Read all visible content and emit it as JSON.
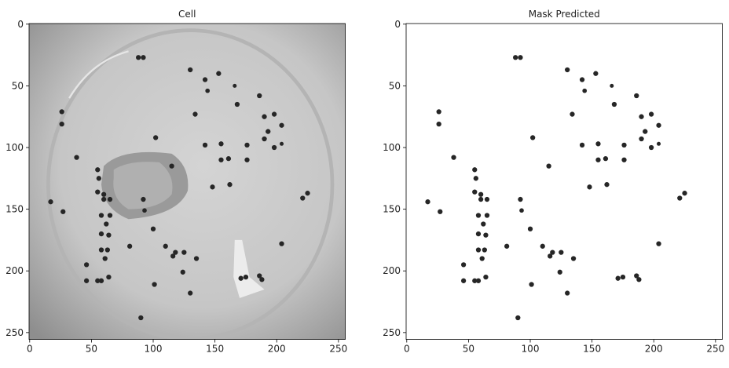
{
  "chart_data": [
    {
      "type": "image",
      "title": "Cell",
      "xlim": [
        -0.5,
        255.5
      ],
      "ylim": [
        255.5,
        -0.5
      ],
      "xticks": [
        0,
        50,
        100,
        150,
        200,
        250
      ],
      "yticks": [
        0,
        50,
        100,
        150,
        200,
        250
      ]
    },
    {
      "type": "image",
      "title": "Mask Predicted",
      "xlim": [
        -0.5,
        255.5
      ],
      "ylim": [
        255.5,
        -0.5
      ],
      "xticks": [
        0,
        50,
        100,
        150,
        200,
        250
      ],
      "yticks": [
        0,
        50,
        100,
        150,
        200,
        250
      ]
    }
  ]
}
